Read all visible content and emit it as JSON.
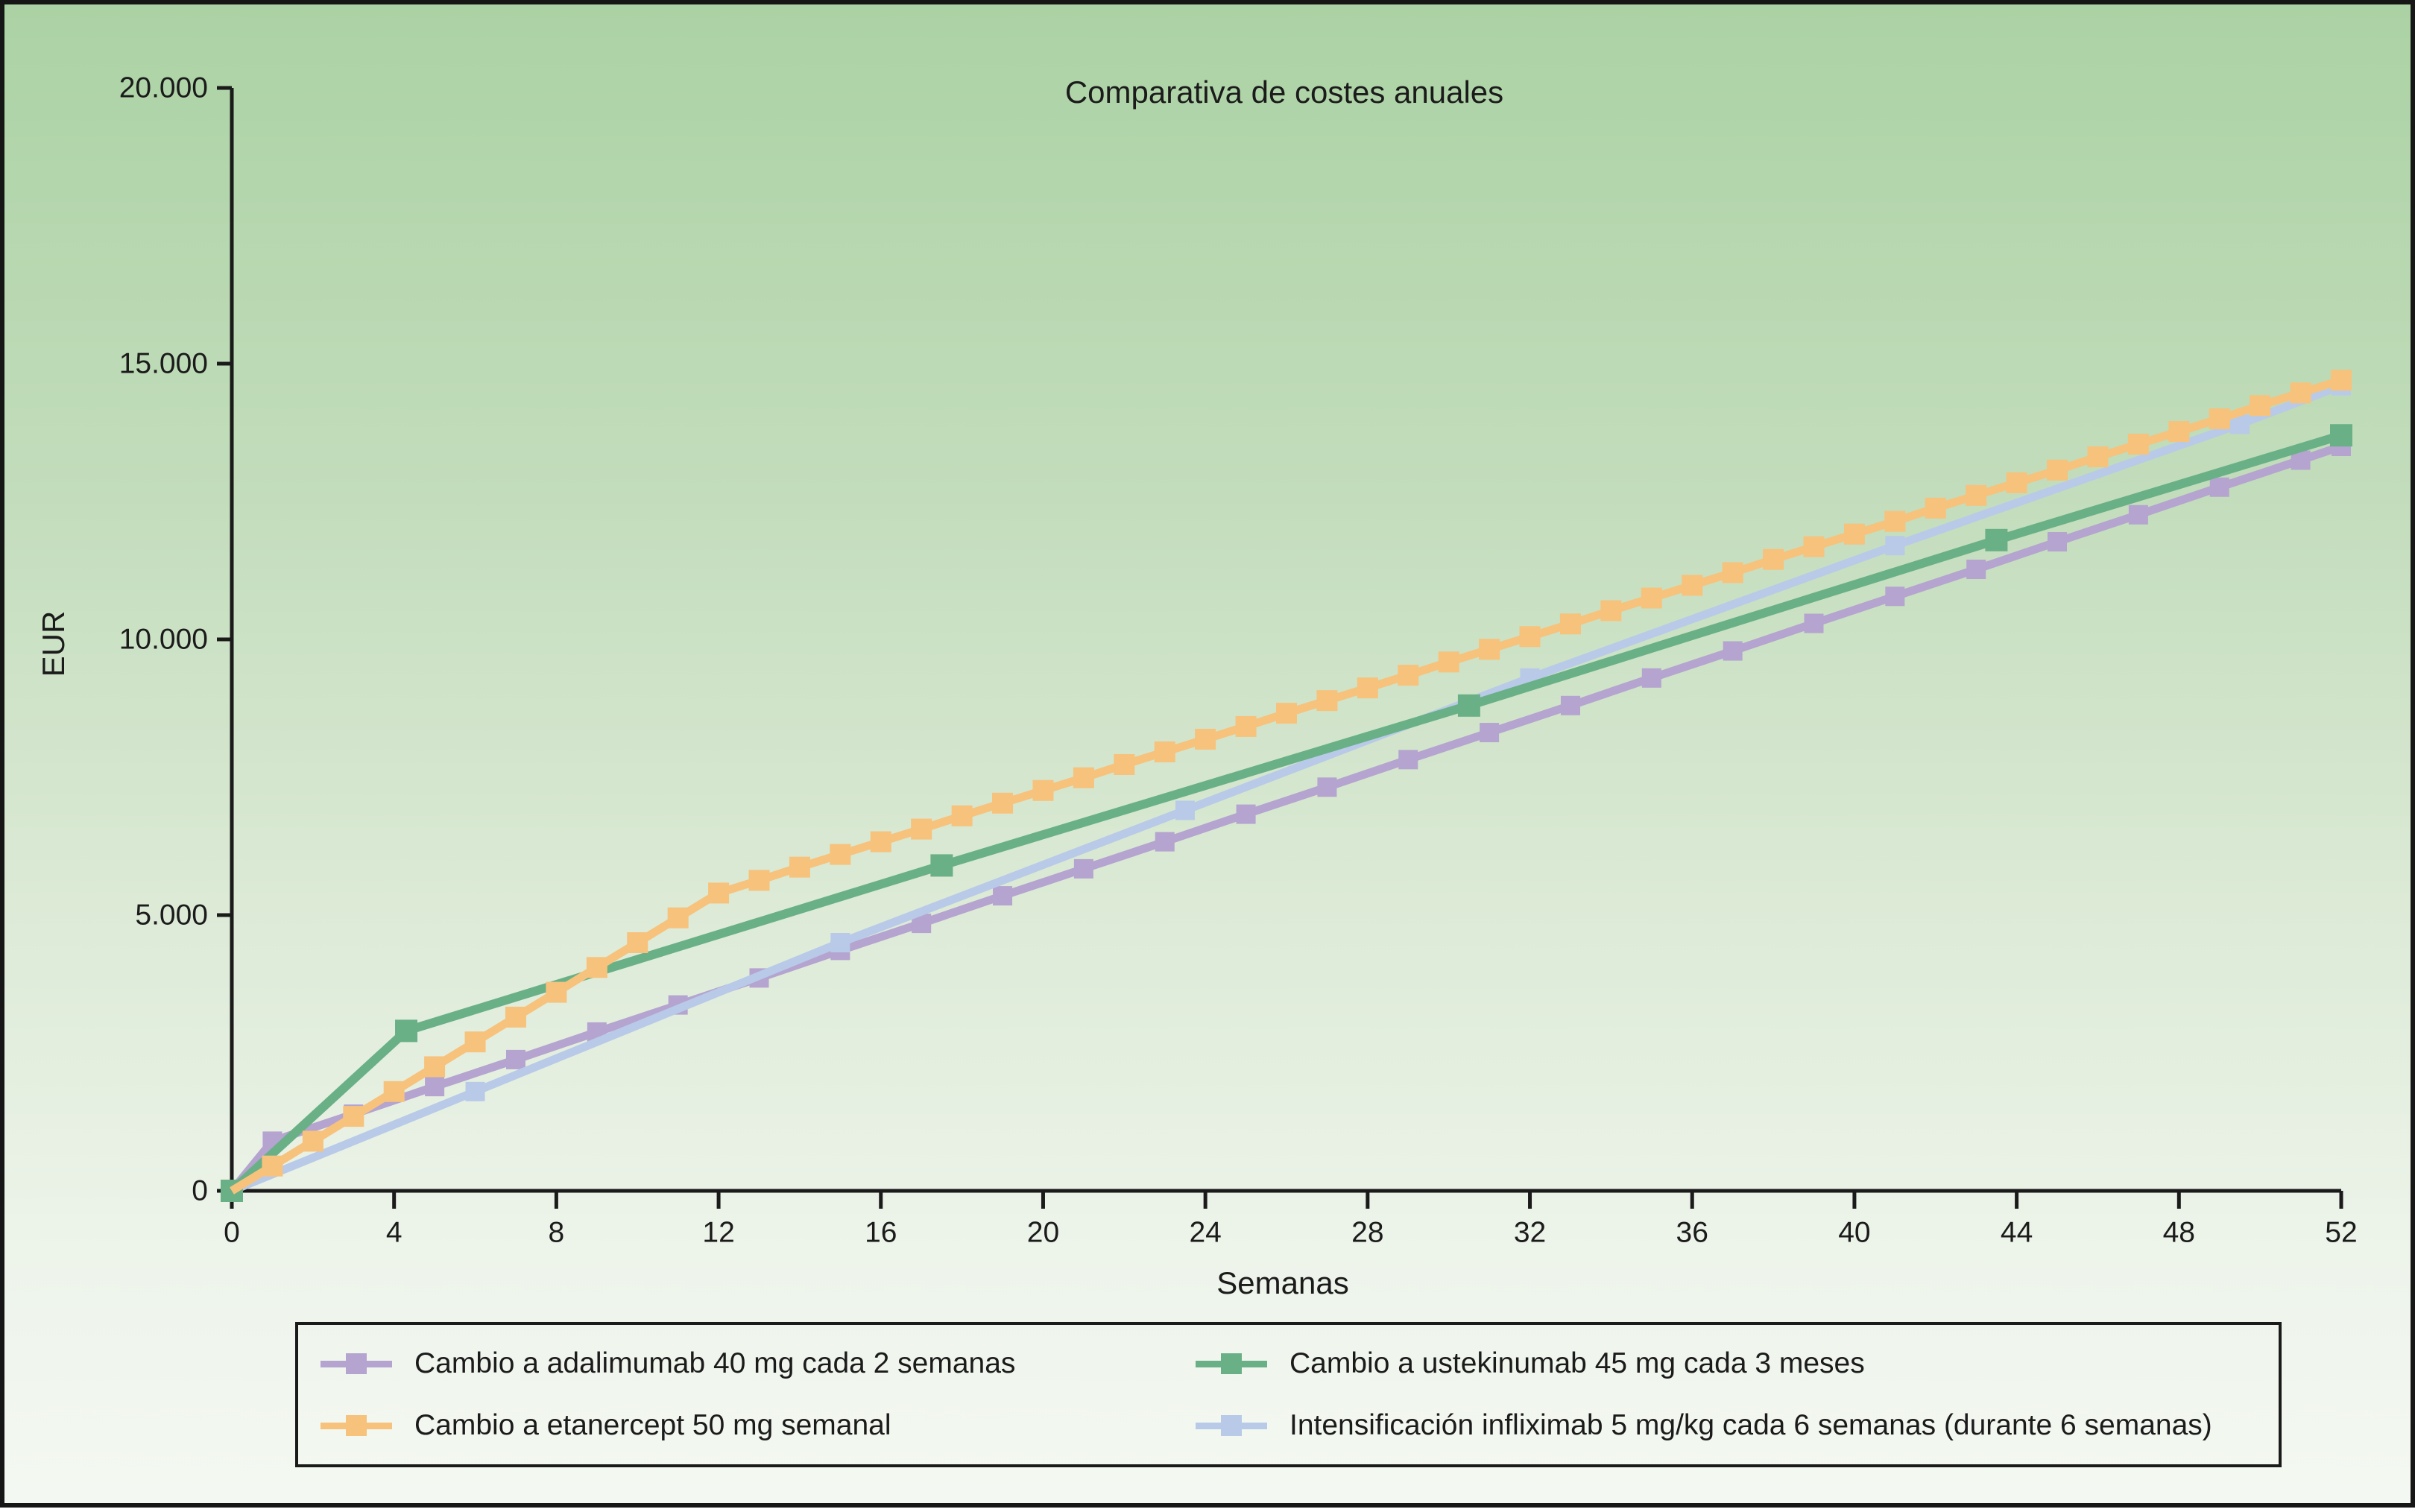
{
  "title": "Comparativa de costes anuales",
  "y_axis": {
    "label": "EUR",
    "tick_labels": [
      "0",
      "5.000",
      "10.000",
      "15.000",
      "20.000"
    ],
    "tick_values": [
      0,
      5000,
      10000,
      15000,
      20000
    ],
    "max": 20000
  },
  "x_axis": {
    "label": "Semanas",
    "tick_labels": [
      "0",
      "4",
      "8",
      "12",
      "16",
      "20",
      "24",
      "28",
      "32",
      "36",
      "40",
      "44",
      "48",
      "52"
    ],
    "tick_values": [
      0,
      4,
      8,
      12,
      16,
      20,
      24,
      28,
      32,
      36,
      40,
      44,
      48,
      52
    ],
    "max": 52
  },
  "colors": {
    "axis": "#1a1a1a",
    "text": "#1b1b1b",
    "border": "#161616"
  },
  "chart_data": {
    "type": "line",
    "title": "Comparativa de costes anuales",
    "xlabel": "Semanas",
    "ylabel": "EUR",
    "xlim": [
      0,
      52
    ],
    "ylim": [
      0,
      20000
    ],
    "grid": false,
    "legend_position": "bottom",
    "series": [
      {
        "name": "Cambio a adalimumab 40 mg cada 2 semanas",
        "color": "#b4a4cf",
        "marker": "square",
        "x": [
          0,
          1,
          3,
          5,
          7,
          9,
          11,
          13,
          15,
          17,
          19,
          21,
          23,
          25,
          27,
          29,
          31,
          33,
          35,
          37,
          39,
          41,
          43,
          45,
          47,
          49,
          51,
          52
        ],
        "y": [
          0,
          900,
          1390,
          1890,
          2380,
          2880,
          3370,
          3860,
          4360,
          4850,
          5350,
          5840,
          6330,
          6830,
          7320,
          7820,
          8310,
          8800,
          9300,
          9790,
          10290,
          10780,
          11270,
          11770,
          12260,
          12760,
          13250,
          13500
        ]
      },
      {
        "name": "Cambio a etanercept 50 mg semanal",
        "color": "#f7c27c",
        "marker": "square",
        "x": [
          0,
          1,
          2,
          3,
          4,
          5,
          6,
          7,
          8,
          9,
          10,
          11,
          12,
          13,
          14,
          15,
          16,
          17,
          18,
          19,
          20,
          21,
          22,
          23,
          24,
          25,
          26,
          27,
          28,
          29,
          30,
          31,
          32,
          33,
          34,
          35,
          36,
          37,
          38,
          39,
          40,
          41,
          42,
          43,
          44,
          45,
          46,
          47,
          48,
          49,
          50,
          51,
          52
        ],
        "y": [
          0,
          450,
          900,
          1350,
          1800,
          2250,
          2700,
          3150,
          3600,
          4050,
          4500,
          4950,
          5400,
          5630,
          5870,
          6100,
          6330,
          6560,
          6800,
          7030,
          7260,
          7490,
          7730,
          7960,
          8190,
          8420,
          8660,
          8890,
          9120,
          9350,
          9590,
          9820,
          10050,
          10280,
          10520,
          10750,
          10980,
          11210,
          11450,
          11680,
          11910,
          12140,
          12380,
          12610,
          12840,
          13070,
          13310,
          13540,
          13770,
          14000,
          14240,
          14470,
          14700
        ]
      },
      {
        "name": "Cambio a ustekinumab 45 mg cada 3 meses",
        "color": "#6ab086",
        "marker": "square",
        "x": [
          0,
          4.3,
          17.5,
          30.5,
          43.5,
          52
        ],
        "y": [
          0,
          2900,
          5900,
          8800,
          11800,
          13700
        ]
      },
      {
        "name": "Intensificación infliximab 5 mg/kg cada 6 semanas (durante 6 semanas)",
        "color": "#b8cae8",
        "marker": "square",
        "x": [
          0,
          6,
          15,
          23.5,
          32,
          41,
          49.5,
          52
        ],
        "y": [
          0,
          1800,
          4500,
          6900,
          9300,
          11700,
          13900,
          14600
        ]
      }
    ]
  },
  "legend": {
    "order_note": "row-major 2x2",
    "items": [
      {
        "series_index": 0
      },
      {
        "series_index": 2
      },
      {
        "series_index": 1
      },
      {
        "series_index": 3
      }
    ]
  }
}
